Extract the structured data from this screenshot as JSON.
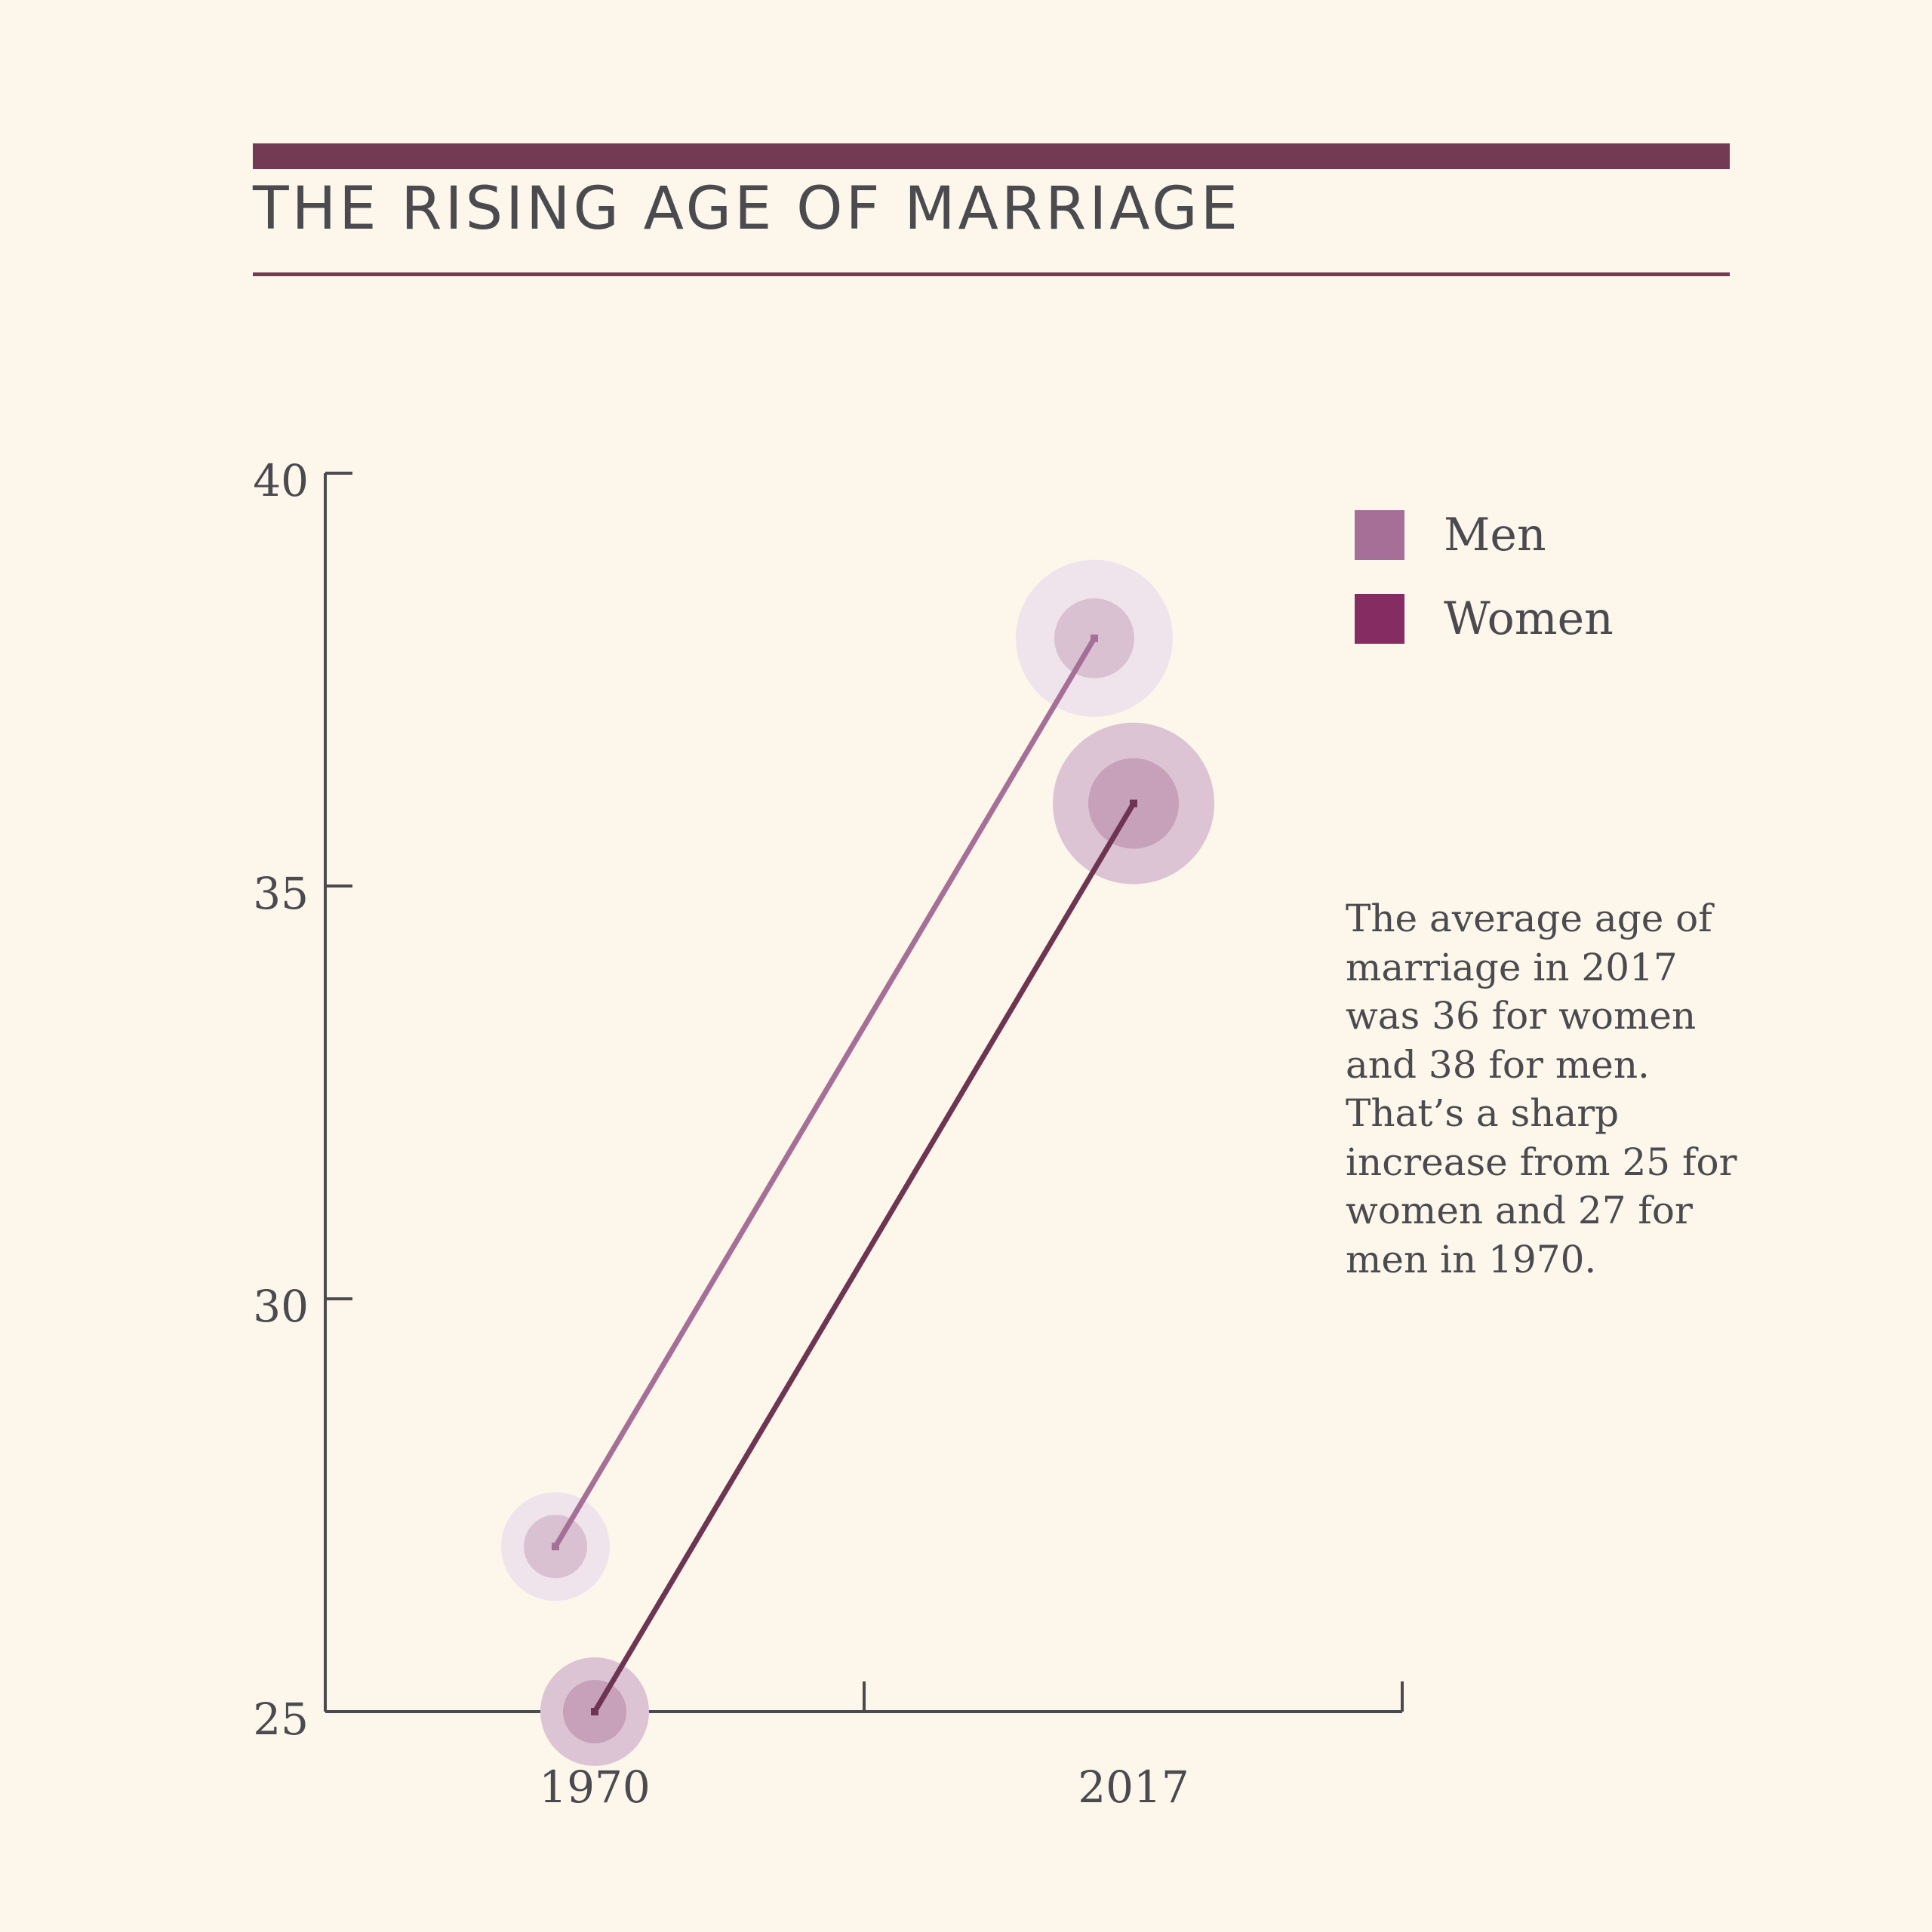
{
  "title": "THE RISING AGE OF MARRIAGE",
  "annotation": "The average age of marriage in 2017 was 36 for women and 38 for men. That’s a sharp increase from 25 for women and 27 for men in 1970.",
  "legend": {
    "items": [
      {
        "label": "Men",
        "color": "#a66f97"
      },
      {
        "label": "Women",
        "color": "#852c62"
      }
    ]
  },
  "colors": {
    "background": "#fcf6eb",
    "accent": "#723a53",
    "text": "#4a4a4f",
    "men_line": "#a66f97",
    "women_line": "#6e3553",
    "axis": "#4a4a4f"
  },
  "chart_data": {
    "type": "line",
    "title": "THE RISING AGE OF MARRIAGE",
    "xlabel": "",
    "ylabel": "",
    "categories": [
      "1970",
      "2017"
    ],
    "yticks": [
      25,
      30,
      35,
      40
    ],
    "ylim": [
      25,
      40
    ],
    "grid": false,
    "legend_position": "top-right",
    "series": [
      {
        "name": "Men",
        "values": [
          27,
          38
        ]
      },
      {
        "name": "Women",
        "values": [
          25,
          36
        ]
      }
    ]
  }
}
